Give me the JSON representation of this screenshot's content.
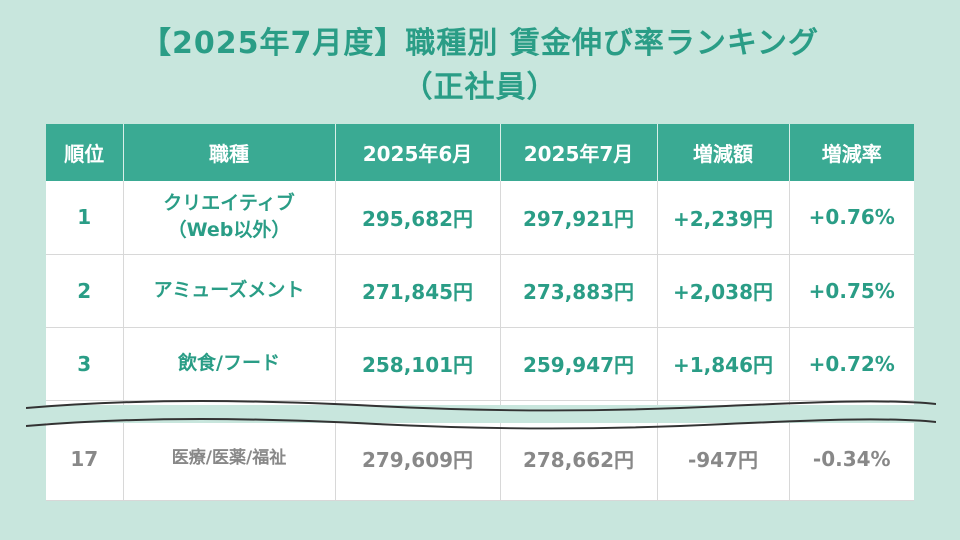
{
  "title": {
    "line1": "【2025年7月度】職種別 賃金伸び率ランキング",
    "line2": "（正社員）"
  },
  "table": {
    "headers": [
      "順位",
      "職種",
      "2025年6月",
      "2025年7月",
      "増減額",
      "増減率"
    ],
    "rows": [
      {
        "rank": "1",
        "job_line1": "クリエイティブ",
        "job_line2": "（Web以外）",
        "june": "295,682円",
        "july": "297,921円",
        "diff": "+2,239円",
        "rate": "+0.76%"
      },
      {
        "rank": "2",
        "job_line1": "アミューズメント",
        "job_line2": "",
        "june": "271,845円",
        "july": "273,883円",
        "diff": "+2,038円",
        "rate": "+0.75%"
      },
      {
        "rank": "3",
        "job_line1": "飲食/フード",
        "job_line2": "",
        "june": "258,101円",
        "july": "259,947円",
        "diff": "+1,846円",
        "rate": "+0.72%"
      }
    ],
    "last_row": {
      "rank": "17",
      "job": "医療/医薬/福祉",
      "june": "279,609円",
      "july": "278,662円",
      "diff": "-947円",
      "rate": "-0.34%"
    }
  },
  "colors": {
    "background": "#c8e6dd",
    "accent": "#2a9d86",
    "header": "#3aaa93",
    "muted": "#888888"
  }
}
